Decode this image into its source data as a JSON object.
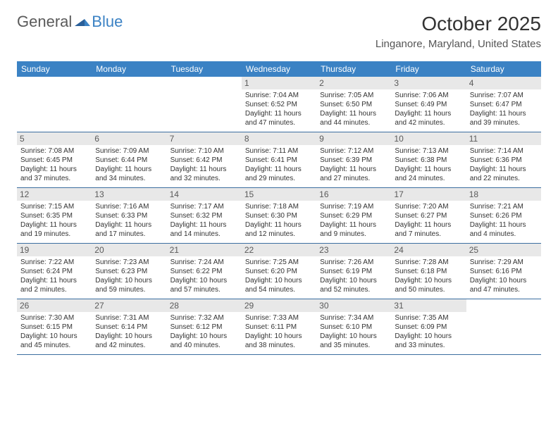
{
  "logo": {
    "part1": "General",
    "part2": "Blue"
  },
  "title": "October 2025",
  "location": "Linganore, Maryland, United States",
  "colors": {
    "header_bg": "#3b82c4",
    "header_text": "#ffffff",
    "daynum_bg": "#e8e8e8",
    "border": "#3b6ea0",
    "logo_gray": "#5a5a5a",
    "logo_blue": "#3b82c4"
  },
  "dayNames": [
    "Sunday",
    "Monday",
    "Tuesday",
    "Wednesday",
    "Thursday",
    "Friday",
    "Saturday"
  ],
  "weeks": [
    [
      {
        "n": "",
        "sr": "",
        "ss": "",
        "dl": ""
      },
      {
        "n": "",
        "sr": "",
        "ss": "",
        "dl": ""
      },
      {
        "n": "",
        "sr": "",
        "ss": "",
        "dl": ""
      },
      {
        "n": "1",
        "sr": "Sunrise: 7:04 AM",
        "ss": "Sunset: 6:52 PM",
        "dl": "Daylight: 11 hours and 47 minutes."
      },
      {
        "n": "2",
        "sr": "Sunrise: 7:05 AM",
        "ss": "Sunset: 6:50 PM",
        "dl": "Daylight: 11 hours and 44 minutes."
      },
      {
        "n": "3",
        "sr": "Sunrise: 7:06 AM",
        "ss": "Sunset: 6:49 PM",
        "dl": "Daylight: 11 hours and 42 minutes."
      },
      {
        "n": "4",
        "sr": "Sunrise: 7:07 AM",
        "ss": "Sunset: 6:47 PM",
        "dl": "Daylight: 11 hours and 39 minutes."
      }
    ],
    [
      {
        "n": "5",
        "sr": "Sunrise: 7:08 AM",
        "ss": "Sunset: 6:45 PM",
        "dl": "Daylight: 11 hours and 37 minutes."
      },
      {
        "n": "6",
        "sr": "Sunrise: 7:09 AM",
        "ss": "Sunset: 6:44 PM",
        "dl": "Daylight: 11 hours and 34 minutes."
      },
      {
        "n": "7",
        "sr": "Sunrise: 7:10 AM",
        "ss": "Sunset: 6:42 PM",
        "dl": "Daylight: 11 hours and 32 minutes."
      },
      {
        "n": "8",
        "sr": "Sunrise: 7:11 AM",
        "ss": "Sunset: 6:41 PM",
        "dl": "Daylight: 11 hours and 29 minutes."
      },
      {
        "n": "9",
        "sr": "Sunrise: 7:12 AM",
        "ss": "Sunset: 6:39 PM",
        "dl": "Daylight: 11 hours and 27 minutes."
      },
      {
        "n": "10",
        "sr": "Sunrise: 7:13 AM",
        "ss": "Sunset: 6:38 PM",
        "dl": "Daylight: 11 hours and 24 minutes."
      },
      {
        "n": "11",
        "sr": "Sunrise: 7:14 AM",
        "ss": "Sunset: 6:36 PM",
        "dl": "Daylight: 11 hours and 22 minutes."
      }
    ],
    [
      {
        "n": "12",
        "sr": "Sunrise: 7:15 AM",
        "ss": "Sunset: 6:35 PM",
        "dl": "Daylight: 11 hours and 19 minutes."
      },
      {
        "n": "13",
        "sr": "Sunrise: 7:16 AM",
        "ss": "Sunset: 6:33 PM",
        "dl": "Daylight: 11 hours and 17 minutes."
      },
      {
        "n": "14",
        "sr": "Sunrise: 7:17 AM",
        "ss": "Sunset: 6:32 PM",
        "dl": "Daylight: 11 hours and 14 minutes."
      },
      {
        "n": "15",
        "sr": "Sunrise: 7:18 AM",
        "ss": "Sunset: 6:30 PM",
        "dl": "Daylight: 11 hours and 12 minutes."
      },
      {
        "n": "16",
        "sr": "Sunrise: 7:19 AM",
        "ss": "Sunset: 6:29 PM",
        "dl": "Daylight: 11 hours and 9 minutes."
      },
      {
        "n": "17",
        "sr": "Sunrise: 7:20 AM",
        "ss": "Sunset: 6:27 PM",
        "dl": "Daylight: 11 hours and 7 minutes."
      },
      {
        "n": "18",
        "sr": "Sunrise: 7:21 AM",
        "ss": "Sunset: 6:26 PM",
        "dl": "Daylight: 11 hours and 4 minutes."
      }
    ],
    [
      {
        "n": "19",
        "sr": "Sunrise: 7:22 AM",
        "ss": "Sunset: 6:24 PM",
        "dl": "Daylight: 11 hours and 2 minutes."
      },
      {
        "n": "20",
        "sr": "Sunrise: 7:23 AM",
        "ss": "Sunset: 6:23 PM",
        "dl": "Daylight: 10 hours and 59 minutes."
      },
      {
        "n": "21",
        "sr": "Sunrise: 7:24 AM",
        "ss": "Sunset: 6:22 PM",
        "dl": "Daylight: 10 hours and 57 minutes."
      },
      {
        "n": "22",
        "sr": "Sunrise: 7:25 AM",
        "ss": "Sunset: 6:20 PM",
        "dl": "Daylight: 10 hours and 54 minutes."
      },
      {
        "n": "23",
        "sr": "Sunrise: 7:26 AM",
        "ss": "Sunset: 6:19 PM",
        "dl": "Daylight: 10 hours and 52 minutes."
      },
      {
        "n": "24",
        "sr": "Sunrise: 7:28 AM",
        "ss": "Sunset: 6:18 PM",
        "dl": "Daylight: 10 hours and 50 minutes."
      },
      {
        "n": "25",
        "sr": "Sunrise: 7:29 AM",
        "ss": "Sunset: 6:16 PM",
        "dl": "Daylight: 10 hours and 47 minutes."
      }
    ],
    [
      {
        "n": "26",
        "sr": "Sunrise: 7:30 AM",
        "ss": "Sunset: 6:15 PM",
        "dl": "Daylight: 10 hours and 45 minutes."
      },
      {
        "n": "27",
        "sr": "Sunrise: 7:31 AM",
        "ss": "Sunset: 6:14 PM",
        "dl": "Daylight: 10 hours and 42 minutes."
      },
      {
        "n": "28",
        "sr": "Sunrise: 7:32 AM",
        "ss": "Sunset: 6:12 PM",
        "dl": "Daylight: 10 hours and 40 minutes."
      },
      {
        "n": "29",
        "sr": "Sunrise: 7:33 AM",
        "ss": "Sunset: 6:11 PM",
        "dl": "Daylight: 10 hours and 38 minutes."
      },
      {
        "n": "30",
        "sr": "Sunrise: 7:34 AM",
        "ss": "Sunset: 6:10 PM",
        "dl": "Daylight: 10 hours and 35 minutes."
      },
      {
        "n": "31",
        "sr": "Sunrise: 7:35 AM",
        "ss": "Sunset: 6:09 PM",
        "dl": "Daylight: 10 hours and 33 minutes."
      },
      {
        "n": "",
        "sr": "",
        "ss": "",
        "dl": ""
      }
    ]
  ]
}
